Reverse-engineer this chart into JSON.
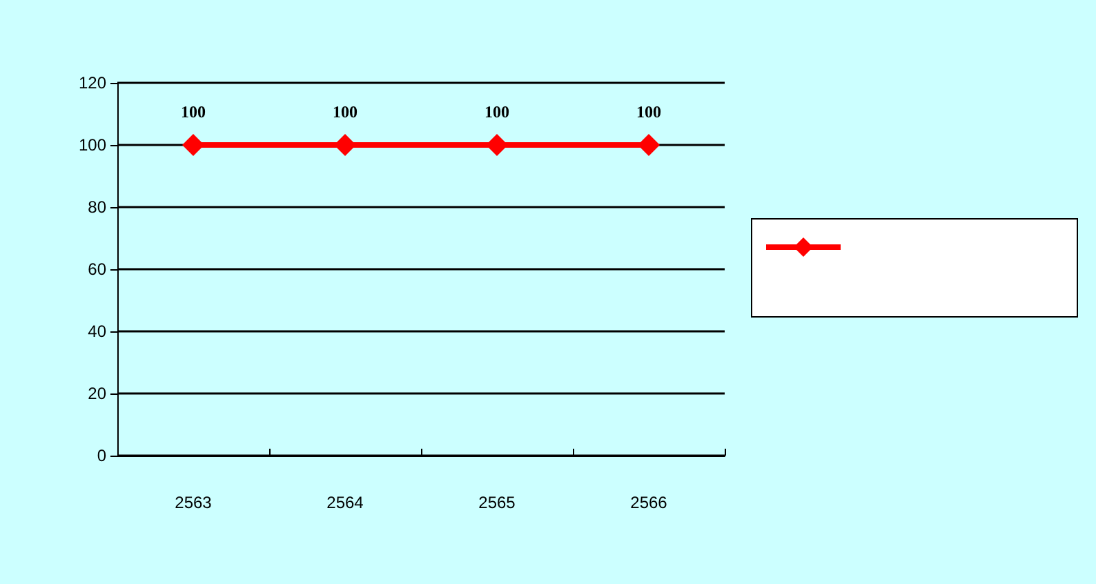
{
  "chart_data": {
    "type": "line",
    "categories": [
      "2563",
      "2564",
      "2565",
      "2566"
    ],
    "series": [
      {
        "color": "#ff0000",
        "values": [
          100,
          100,
          100,
          100
        ]
      }
    ],
    "ylim": [
      0,
      120
    ],
    "yticks": [
      0,
      20,
      40,
      60,
      80,
      100,
      120
    ],
    "grid": "y",
    "marker": "diamond",
    "line_style": "solid",
    "data_labels": true
  }
}
